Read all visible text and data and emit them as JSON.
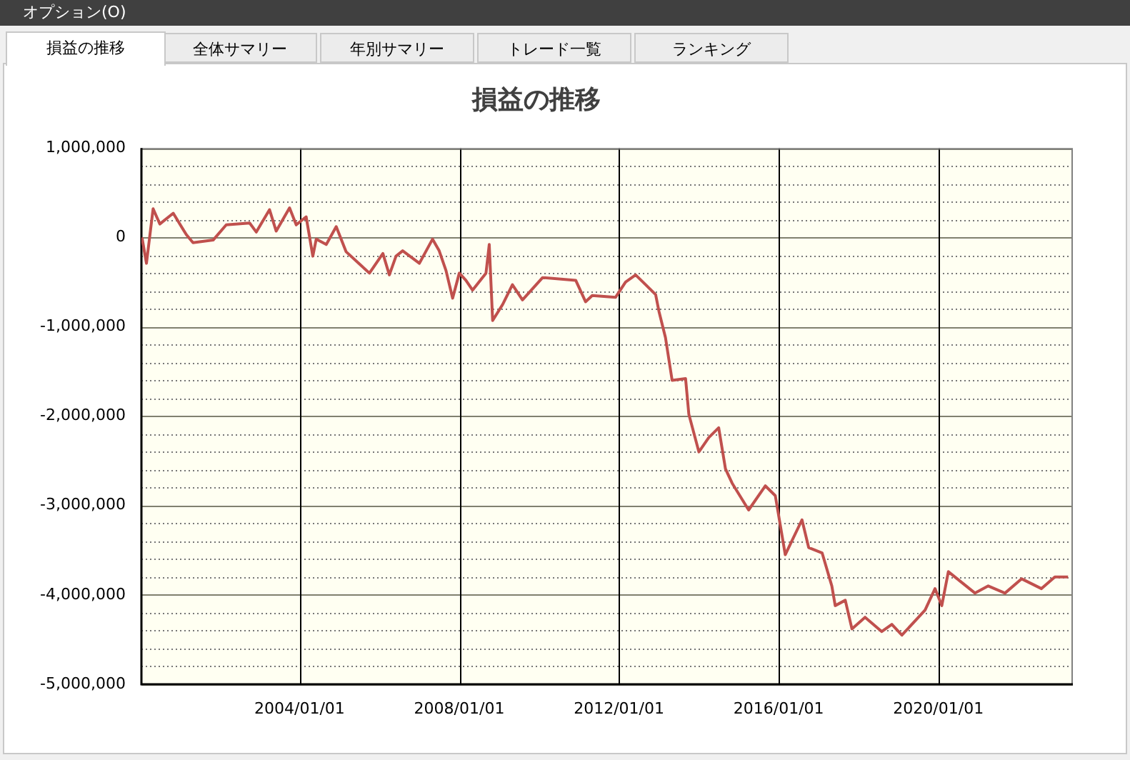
{
  "chart_data": {
    "type": "line",
    "title": "損益の推移",
    "annotations": [
      "オプション(O)",
      "損益の推移",
      "全体サマリー",
      "年別サマリー",
      "トレード一覧",
      "ランキング"
    ],
    "x": [
      "2000-01-20",
      "2000-03",
      "2000-05",
      "2000-07",
      "2000-11",
      "2001-03",
      "2001-05",
      "2001-11",
      "2002-03",
      "2002-10",
      "2002-12",
      "2003-04",
      "2003-06",
      "2003-10",
      "2003-12",
      "2004-03",
      "2004-05",
      "2004-06",
      "2004-09",
      "2004-12",
      "2005-03",
      "2005-10",
      "2006-02",
      "2006-04",
      "2006-06",
      "2006-08",
      "2007-01",
      "2007-05",
      "2007-07",
      "2007-09",
      "2007-11",
      "2008-01",
      "2008-03",
      "2008-05",
      "2008-09",
      "2008-10",
      "2008-11",
      "2009-02",
      "2009-05",
      "2009-08",
      "2010-02",
      "2010-12",
      "2011-03",
      "2011-05",
      "2011-12",
      "2012-03",
      "2012-06",
      "2012-09",
      "2012-12",
      "2013-01",
      "2013-03",
      "2013-05",
      "2013-09",
      "2013-10",
      "2014-01",
      "2014-04",
      "2014-07",
      "2014-09",
      "2014-11",
      "2015-04",
      "2015-09",
      "2015-12",
      "2016-03",
      "2016-08",
      "2016-10",
      "2017-02",
      "2017-05",
      "2017-06",
      "2017-09",
      "2017-11",
      "2018-03",
      "2018-08",
      "2018-11",
      "2019-02",
      "2019-09",
      "2019-12",
      "2020-02",
      "2020-04",
      "2020-12",
      "2021-04",
      "2021-09",
      "2022-02",
      "2022-08",
      "2022-12",
      "2023-04"
    ],
    "series": [
      {
        "color": "#c0504d",
        "values": [
          0,
          -290000,
          320000,
          150000,
          270000,
          30000,
          -60000,
          -30000,
          140000,
          160000,
          60000,
          310000,
          70000,
          330000,
          140000,
          230000,
          -210000,
          -20000,
          -80000,
          120000,
          -160000,
          -400000,
          -180000,
          -420000,
          -210000,
          -150000,
          -290000,
          -20000,
          -150000,
          -370000,
          -680000,
          -400000,
          -480000,
          -590000,
          -400000,
          -80000,
          -930000,
          -750000,
          -530000,
          -700000,
          -450000,
          -480000,
          -720000,
          -650000,
          -670000,
          -500000,
          -420000,
          -530000,
          -640000,
          -830000,
          -1120000,
          -1600000,
          -1580000,
          -1980000,
          -2400000,
          -2240000,
          -2130000,
          -2590000,
          -2750000,
          -3050000,
          -2780000,
          -2890000,
          -3550000,
          -3160000,
          -3470000,
          -3530000,
          -3900000,
          -4120000,
          -4060000,
          -4380000,
          -4250000,
          -4410000,
          -4330000,
          -4450000,
          -4170000,
          -3930000,
          -4120000,
          -3740000,
          -3980000,
          -3900000,
          -3980000,
          -3820000,
          -3930000,
          -3800000,
          -3800000
        ]
      }
    ],
    "xlim": [
      "2000-01-15",
      "2023-05-15"
    ],
    "xticks": [
      {
        "value": "2004-01-01",
        "label": "2004/01/01"
      },
      {
        "value": "2008-01-01",
        "label": "2008/01/01"
      },
      {
        "value": "2012-01-01",
        "label": "2012/01/01"
      },
      {
        "value": "2016-01-01",
        "label": "2016/01/01"
      },
      {
        "value": "2020-01-01",
        "label": "2020/01/01"
      }
    ],
    "ylim": [
      -5000000,
      1000000
    ],
    "yticks": [
      {
        "value": -5000000,
        "label": "-5,000,000"
      },
      {
        "value": -4800000,
        "label": null
      },
      {
        "value": -4600000,
        "label": null
      },
      {
        "value": -4400000,
        "label": null
      },
      {
        "value": -4200000,
        "label": null
      },
      {
        "value": -4000000,
        "label": "-4,000,000"
      },
      {
        "value": -3800000,
        "label": null
      },
      {
        "value": -3600000,
        "label": null
      },
      {
        "value": -3400000,
        "label": null
      },
      {
        "value": -3200000,
        "label": null
      },
      {
        "value": -3000000,
        "label": "-3,000,000"
      },
      {
        "value": -2800000,
        "label": null
      },
      {
        "value": -2600000,
        "label": null
      },
      {
        "value": -2400000,
        "label": null
      },
      {
        "value": -2200000,
        "label": null
      },
      {
        "value": -2000000,
        "label": "-2,000,000"
      },
      {
        "value": -1800000,
        "label": null
      },
      {
        "value": -1600000,
        "label": null
      },
      {
        "value": -1400000,
        "label": null
      },
      {
        "value": -1200000,
        "label": null
      },
      {
        "value": -1000000,
        "label": "-1,000,000"
      },
      {
        "value": -800000,
        "label": null
      },
      {
        "value": -600000,
        "label": null
      },
      {
        "value": -400000,
        "label": null
      },
      {
        "value": -200000,
        "label": null
      },
      {
        "value": 0,
        "label": "0"
      },
      {
        "value": 200000,
        "label": null
      },
      {
        "value": 400000,
        "label": null
      },
      {
        "value": 600000,
        "label": null
      },
      {
        "value": 800000,
        "label": null
      },
      {
        "value": 1000000,
        "label": "1,000,000"
      }
    ],
    "grid": true,
    "legend": false,
    "marker": "none",
    "line_style": "solid"
  }
}
